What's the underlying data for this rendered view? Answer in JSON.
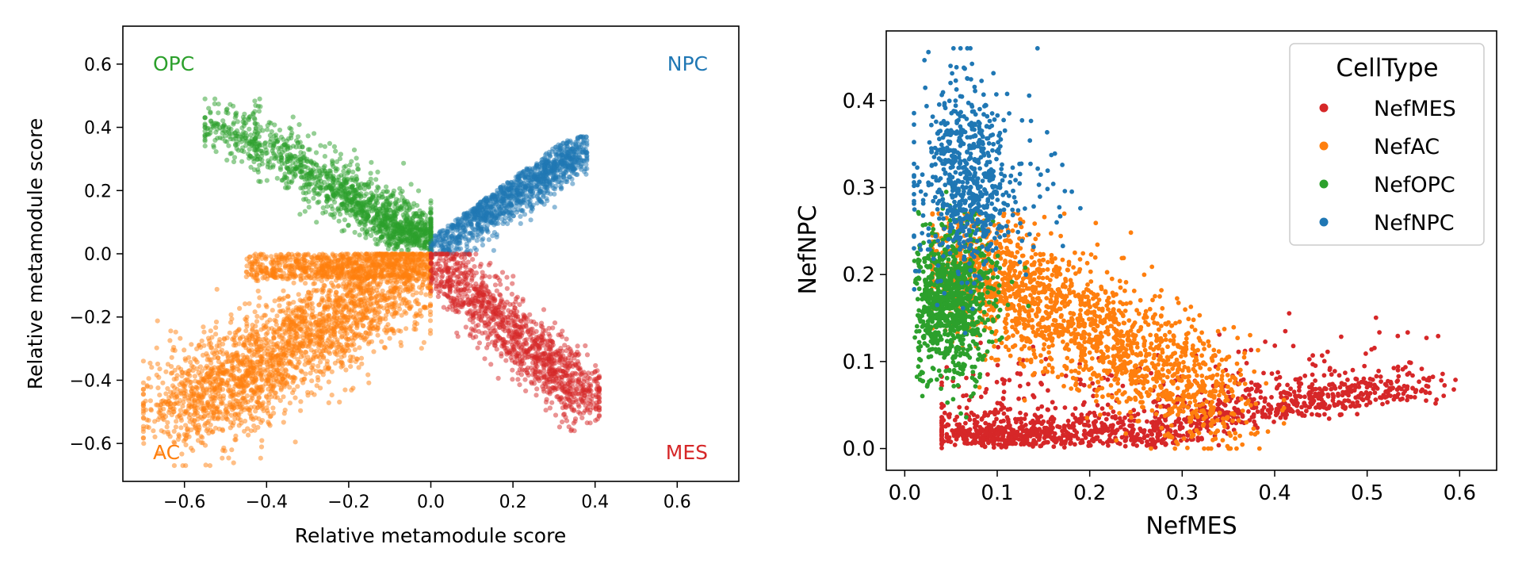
{
  "colors": {
    "OPC": "#2ca02c",
    "NPC": "#1f77b4",
    "AC": "#ff7f0e",
    "MES": "#d62728"
  },
  "chart_data": [
    {
      "type": "scatter",
      "xlabel": "Relative metamodule score",
      "ylabel": "Relative metamodule score",
      "xlim": [
        -0.75,
        0.75
      ],
      "ylim": [
        -0.72,
        0.72
      ],
      "xticks": [
        -0.6,
        -0.4,
        -0.2,
        0.0,
        0.2,
        0.4,
        0.6
      ],
      "xtick_labels": [
        "−0.6",
        "−0.4",
        "−0.2",
        "0.0",
        "0.2",
        "0.4",
        "0.6"
      ],
      "yticks": [
        0.6,
        0.4,
        0.2,
        0.0,
        -0.2,
        -0.4,
        -0.6
      ],
      "ytick_labels": [
        "0.6",
        "0.4",
        "0.2",
        "0.0",
        "−0.2",
        "−0.4",
        "−0.6"
      ],
      "quadrant_labels": {
        "top_left": "OPC",
        "top_right": "NPC",
        "bottom_left": "AC",
        "bottom_right": "MES"
      },
      "grid": false,
      "series": [
        {
          "name": "OPC",
          "color": "#2ca02c",
          "n": 1500,
          "x_range": [
            -0.55,
            0.0
          ],
          "y_range": [
            0.0,
            0.49
          ],
          "center": [
            -0.13,
            0.07
          ]
        },
        {
          "name": "NPC",
          "color": "#1f77b4",
          "n": 1200,
          "x_range": [
            0.0,
            0.38
          ],
          "y_range": [
            0.0,
            0.37
          ],
          "center": [
            0.2,
            0.2
          ]
        },
        {
          "name": "AC",
          "color": "#ff7f0e",
          "n": 3200,
          "x_range": [
            -0.7,
            0.0
          ],
          "y_range": [
            -0.67,
            0.0
          ],
          "center": [
            -0.25,
            -0.2
          ]
        },
        {
          "name": "MES",
          "color": "#d62728",
          "n": 1200,
          "x_range": [
            0.0,
            0.41
          ],
          "y_range": [
            -0.56,
            0.0
          ],
          "center": [
            0.14,
            -0.2
          ]
        }
      ]
    },
    {
      "type": "scatter",
      "xlabel": "NefMES",
      "ylabel": "NefNPC",
      "xlim": [
        -0.02,
        0.64
      ],
      "ylim": [
        -0.025,
        0.48
      ],
      "xticks": [
        0.0,
        0.1,
        0.2,
        0.3,
        0.4,
        0.5,
        0.6
      ],
      "xtick_labels": [
        "0.0",
        "0.1",
        "0.2",
        "0.3",
        "0.4",
        "0.5",
        "0.6"
      ],
      "yticks": [
        0.0,
        0.1,
        0.2,
        0.3,
        0.4
      ],
      "ytick_labels": [
        "0.0",
        "0.1",
        "0.2",
        "0.3",
        "0.4"
      ],
      "grid": false,
      "legend": {
        "title": "CellType",
        "placement": "top-right",
        "entries": [
          "NefMES",
          "NefAC",
          "NefOPC",
          "NefNPC"
        ]
      },
      "series": [
        {
          "name": "NefMES",
          "color": "#d62728",
          "n": 1400,
          "x_range": [
            0.04,
            0.62
          ],
          "y_range": [
            0.0,
            0.16
          ],
          "center": [
            0.2,
            0.03
          ]
        },
        {
          "name": "NefAC",
          "color": "#ff7f0e",
          "n": 1800,
          "x_range": [
            0.03,
            0.41
          ],
          "y_range": [
            0.0,
            0.27
          ],
          "center": [
            0.15,
            0.1
          ]
        },
        {
          "name": "NefOPC",
          "color": "#2ca02c",
          "n": 900,
          "x_range": [
            0.01,
            0.14
          ],
          "y_range": [
            0.02,
            0.3
          ],
          "center": [
            0.05,
            0.17
          ]
        },
        {
          "name": "NefNPC",
          "color": "#1f77b4",
          "n": 700,
          "x_range": [
            0.01,
            0.19
          ],
          "y_range": [
            0.05,
            0.46
          ],
          "center": [
            0.06,
            0.31
          ]
        }
      ]
    }
  ]
}
